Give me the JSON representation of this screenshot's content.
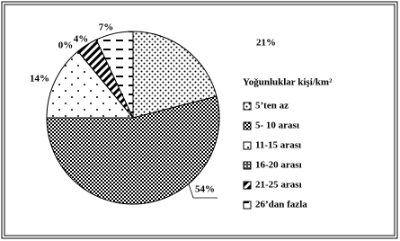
{
  "chart_data": {
    "type": "pie",
    "legend_title": "Yoğunluklar kişi/km²",
    "categories": [
      "5’ten az",
      "5- 10 arası",
      "11-15 arası",
      "16-20 arası",
      "21-25 arası",
      "26’dan fazla"
    ],
    "values": [
      21,
      54,
      14,
      0,
      4,
      7
    ],
    "value_labels": [
      "21%",
      "54%",
      "14%",
      "0%",
      "4%",
      "7%"
    ],
    "legend": "right"
  }
}
